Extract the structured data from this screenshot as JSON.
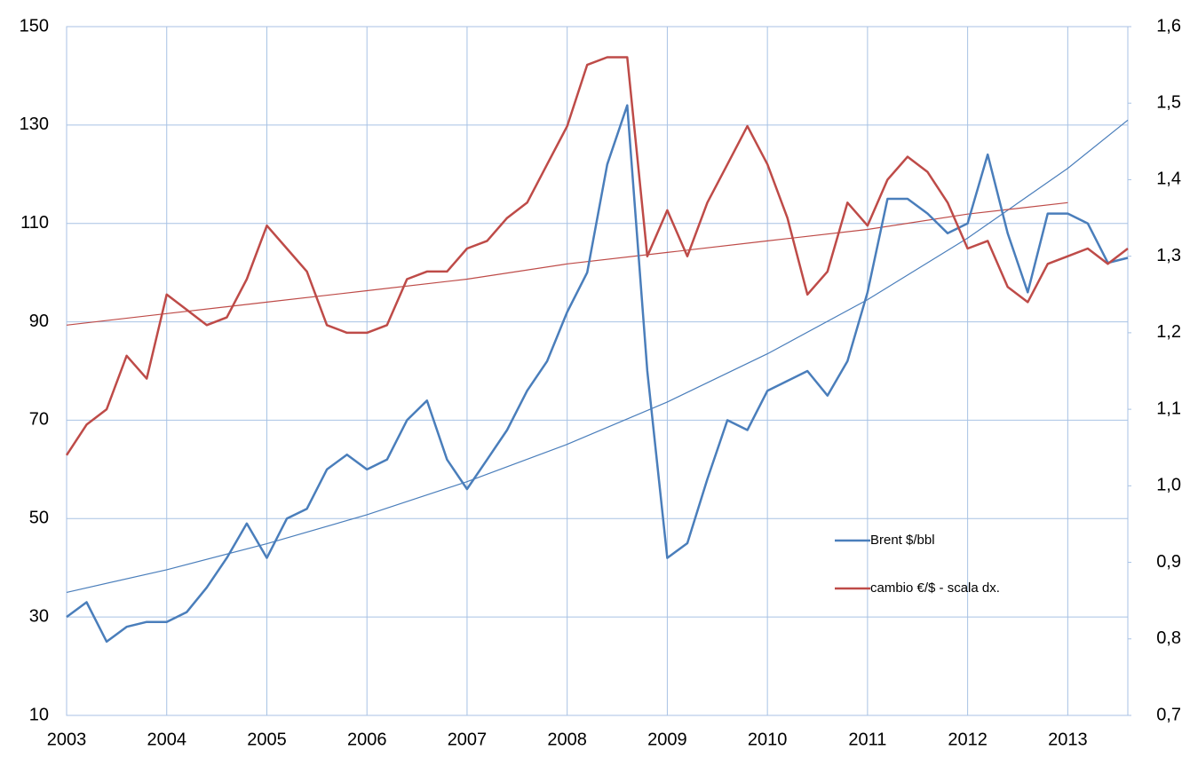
{
  "chart_data": {
    "type": "line",
    "x": [
      2003.0,
      2003.2,
      2003.4,
      2003.6,
      2003.8,
      2004.0,
      2004.2,
      2004.4,
      2004.6,
      2004.8,
      2005.0,
      2005.2,
      2005.4,
      2005.6,
      2005.8,
      2006.0,
      2006.2,
      2006.4,
      2006.6,
      2006.8,
      2007.0,
      2007.2,
      2007.4,
      2007.6,
      2007.8,
      2008.0,
      2008.2,
      2008.4,
      2008.6,
      2008.8,
      2009.0,
      2009.2,
      2009.4,
      2009.6,
      2009.8,
      2010.0,
      2010.2,
      2010.4,
      2010.6,
      2010.8,
      2011.0,
      2011.2,
      2011.4,
      2011.6,
      2011.8,
      2012.0,
      2012.2,
      2012.4,
      2012.6,
      2012.8,
      2013.0,
      2013.2,
      2013.4,
      2013.6
    ],
    "series": [
      {
        "name": "Brent $/bbl",
        "color": "#4a7ebb",
        "axis": "y",
        "values": [
          30,
          33,
          25,
          28,
          29,
          29,
          31,
          36,
          42,
          49,
          42,
          50,
          52,
          60,
          63,
          60,
          62,
          70,
          74,
          62,
          56,
          62,
          68,
          76,
          82,
          92,
          100,
          122,
          134,
          80,
          42,
          45,
          58,
          70,
          68,
          76,
          78,
          80,
          75,
          82,
          96,
          115,
          115,
          112,
          108,
          110,
          124,
          108,
          96,
          112,
          112,
          110,
          102,
          103
        ]
      },
      {
        "name": "cambio €/$ - scala dx.",
        "color": "#be4b48",
        "axis": "y2",
        "values": [
          1.04,
          1.08,
          1.1,
          1.17,
          1.14,
          1.25,
          1.23,
          1.21,
          1.22,
          1.27,
          1.34,
          1.31,
          1.28,
          1.21,
          1.2,
          1.2,
          1.21,
          1.27,
          1.28,
          1.28,
          1.31,
          1.32,
          1.35,
          1.37,
          1.42,
          1.47,
          1.55,
          1.56,
          1.56,
          1.3,
          1.36,
          1.3,
          1.37,
          1.42,
          1.47,
          1.42,
          1.35,
          1.25,
          1.28,
          1.37,
          1.34,
          1.4,
          1.43,
          1.41,
          1.37,
          1.31,
          1.32,
          1.26,
          1.24,
          1.29,
          1.3,
          1.31,
          1.29,
          1.31
        ]
      }
    ],
    "trendlines": [
      {
        "color": "#4a7ebb",
        "axis": "y",
        "x": [
          2003,
          2004,
          2005,
          2006,
          2007,
          2008,
          2009,
          2010,
          2011,
          2012,
          2013,
          2013.6
        ],
        "values": [
          35,
          39.6,
          44.9,
          50.8,
          57.5,
          65.1,
          73.7,
          83.5,
          94.5,
          107,
          121.2,
          131
        ]
      },
      {
        "color": "#be4b48",
        "axis": "y2",
        "x": [
          2003,
          2004,
          2005,
          2006,
          2007,
          2008,
          2009,
          2010,
          2011,
          2012,
          2013
        ],
        "values": [
          1.21,
          1.225,
          1.24,
          1.255,
          1.27,
          1.29,
          1.305,
          1.32,
          1.335,
          1.355,
          1.37
        ]
      }
    ],
    "xlim": [
      2003,
      2013.6
    ],
    "xticks": [
      2003,
      2004,
      2005,
      2006,
      2007,
      2008,
      2009,
      2010,
      2011,
      2012,
      2013
    ],
    "ylim": [
      10,
      150
    ],
    "yticks": [
      10,
      30,
      50,
      70,
      90,
      110,
      130,
      150
    ],
    "y2lim": [
      0.7,
      1.6
    ],
    "y2ticks": [
      {
        "value": 0.7,
        "label": "0,7"
      },
      {
        "value": 0.8,
        "label": "0,8"
      },
      {
        "value": 0.9,
        "label": "0,9"
      },
      {
        "value": 1.0,
        "label": "1,0"
      },
      {
        "value": 1.1,
        "label": "1,1"
      },
      {
        "value": 1.2,
        "label": "1,2"
      },
      {
        "value": 1.3,
        "label": "1,3"
      },
      {
        "value": 1.4,
        "label": "1,4"
      },
      {
        "value": 1.5,
        "label": "1,5"
      },
      {
        "value": 1.6,
        "label": "1,6"
      }
    ],
    "grid": true,
    "legend": "lower right"
  }
}
